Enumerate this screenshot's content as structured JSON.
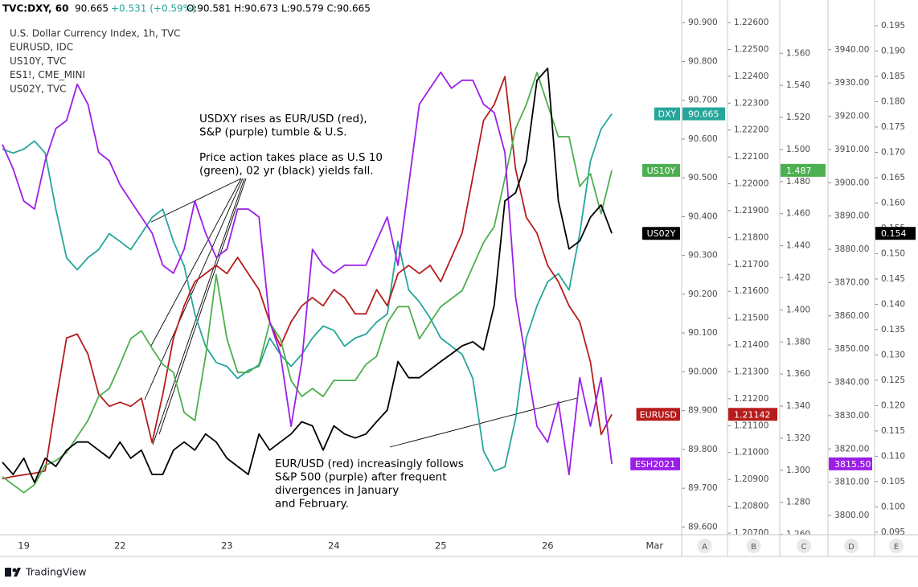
{
  "chart_data": {
    "type": "line",
    "header": {
      "symbol": "TVC:DXY, 60",
      "price": "90.665",
      "change": "+0.531 (+0.59%)",
      "ohlc": "O:90.581 H:90.673 L:90.579 C:90.665"
    },
    "brand": "TradingView",
    "annotations": [
      {
        "lines": [
          "USDXY rises as EUR/USD (red),",
          "S&P (purple) tumble & U.S."
        ]
      },
      {
        "lines": [
          "Price action takes place as U.S 10",
          "(green), 02 yr (black) yields fall."
        ]
      },
      {
        "lines": [
          "EUR/USD (red) increasingly follows",
          "S&P 500 (purple) after frequent",
          "divergences in January",
          "and February."
        ]
      }
    ],
    "categories": [
      null,
      null,
      "19",
      null,
      null,
      null,
      null,
      null,
      null,
      null,
      null,
      "22",
      null,
      null,
      null,
      null,
      null,
      null,
      null,
      null,
      null,
      "23",
      null,
      null,
      null,
      null,
      null,
      null,
      null,
      null,
      null,
      "24",
      null,
      null,
      null,
      null,
      null,
      null,
      null,
      null,
      null,
      "25",
      null,
      null,
      null,
      null,
      null,
      null,
      null,
      null,
      null,
      "26",
      null,
      null,
      null,
      null,
      null,
      null,
      null,
      null,
      null,
      "Mar"
    ],
    "series": [
      {
        "name": "DXY",
        "legend": "U.S. Dollar Currency Index, 1h, TVC",
        "axis_label": "A",
        "color": "#26a69a",
        "ylim": [
          89.58,
          90.917
        ],
        "yticks": [
          {
            "value": 90.9,
            "label": "90.900"
          },
          {
            "value": 90.8,
            "label": "90.800"
          },
          {
            "value": 90.7,
            "label": "90.700"
          },
          {
            "value": 90.6,
            "label": "90.600"
          },
          {
            "value": 90.5,
            "label": "90.500"
          },
          {
            "value": 90.4,
            "label": "90.400"
          },
          {
            "value": 90.3,
            "label": "90.300"
          },
          {
            "value": 90.2,
            "label": "90.200"
          },
          {
            "value": 90.1,
            "label": "90.100"
          },
          {
            "value": 90.0,
            "label": "90.000"
          },
          {
            "value": 89.9,
            "label": "89.900"
          },
          {
            "value": 89.8,
            "label": "89.800"
          },
          {
            "value": 89.7,
            "label": "89.700"
          },
          {
            "value": 89.6,
            "label": "89.600"
          }
        ],
        "values": [
          90.574,
          90.564,
          90.574,
          90.595,
          90.564,
          90.419,
          90.294,
          90.263,
          90.294,
          90.315,
          90.356,
          90.336,
          90.315,
          90.356,
          90.398,
          90.419,
          90.336,
          90.273,
          90.149,
          90.066,
          90.024,
          90.014,
          89.983,
          90.004,
          90.014,
          90.087,
          90.045,
          90.014,
          90.045,
          90.087,
          90.118,
          90.107,
          90.066,
          90.087,
          90.097,
          90.128,
          90.149,
          90.336,
          90.211,
          90.18,
          90.139,
          90.087,
          90.066,
          90.045,
          89.983,
          89.796,
          89.744,
          89.755,
          89.879,
          90.087,
          90.17,
          90.232,
          90.253,
          90.211,
          90.356,
          90.543,
          90.626,
          90.665,
          null,
          null,
          null,
          null
        ]
      },
      {
        "name": "EURUSD",
        "legend": "EURUSD, IDC",
        "axis_label": "B",
        "color": "#b71c1c",
        "ylim": [
          1.20694,
          1.22624
        ],
        "yticks": [
          {
            "value": 1.226,
            "label": "1.22600"
          },
          {
            "value": 1.225,
            "label": "1.22500"
          },
          {
            "value": 1.224,
            "label": "1.22400"
          },
          {
            "value": 1.223,
            "label": "1.22300"
          },
          {
            "value": 1.222,
            "label": "1.22200"
          },
          {
            "value": 1.221,
            "label": "1.22100"
          },
          {
            "value": 1.22,
            "label": "1.22000"
          },
          {
            "value": 1.219,
            "label": "1.21900"
          },
          {
            "value": 1.218,
            "label": "1.21800"
          },
          {
            "value": 1.217,
            "label": "1.21700"
          },
          {
            "value": 1.216,
            "label": "1.21600"
          },
          {
            "value": 1.215,
            "label": "1.21500"
          },
          {
            "value": 1.214,
            "label": "1.21400"
          },
          {
            "value": 1.213,
            "label": "1.21300"
          },
          {
            "value": 1.212,
            "label": "1.21200"
          },
          {
            "value": 1.211,
            "label": "1.21100"
          },
          {
            "value": 1.21,
            "label": "1.21000"
          },
          {
            "value": 1.209,
            "label": "1.20900"
          },
          {
            "value": 1.208,
            "label": "1.20800"
          },
          {
            "value": 1.207,
            "label": "1.20700"
          }
        ],
        "values": [
          1.20902,
          1.20911,
          1.20917,
          1.20923,
          1.20932,
          1.21187,
          1.21426,
          1.21441,
          1.21366,
          1.21217,
          1.21172,
          1.21187,
          1.21172,
          1.21202,
          1.21037,
          1.21217,
          1.21426,
          1.21546,
          1.21636,
          1.21666,
          1.21696,
          1.21666,
          1.21726,
          1.21666,
          1.21606,
          1.21486,
          1.21396,
          1.21486,
          1.21546,
          1.21576,
          1.21546,
          1.21606,
          1.21576,
          1.21516,
          1.21516,
          1.21606,
          1.21546,
          1.21666,
          1.21696,
          1.21666,
          1.21696,
          1.21636,
          1.21726,
          1.21816,
          1.22025,
          1.22235,
          1.22295,
          1.22399,
          1.22055,
          1.21875,
          1.21816,
          1.21696,
          1.21636,
          1.21546,
          1.21486,
          1.21337,
          1.21067,
          1.21142,
          null,
          null,
          null,
          null
        ]
      },
      {
        "name": "US10Y",
        "legend": "US10Y, TVC",
        "axis_label": "C",
        "color": "#4caf50",
        "ylim": [
          1.2598,
          1.5832
        ],
        "yticks": [
          {
            "value": 1.56,
            "label": "1.560"
          },
          {
            "value": 1.54,
            "label": "1.540"
          },
          {
            "value": 1.52,
            "label": "1.520"
          },
          {
            "value": 1.5,
            "label": "1.500"
          },
          {
            "value": 1.48,
            "label": "1.480"
          },
          {
            "value": 1.46,
            "label": "1.460"
          },
          {
            "value": 1.44,
            "label": "1.440"
          },
          {
            "value": 1.42,
            "label": "1.420"
          },
          {
            "value": 1.4,
            "label": "1.400"
          },
          {
            "value": 1.38,
            "label": "1.380"
          },
          {
            "value": 1.36,
            "label": "1.360"
          },
          {
            "value": 1.34,
            "label": "1.340"
          },
          {
            "value": 1.32,
            "label": "1.320"
          },
          {
            "value": 1.3,
            "label": "1.300"
          },
          {
            "value": 1.28,
            "label": "1.280"
          },
          {
            "value": 1.26,
            "label": "1.260"
          }
        ],
        "values": [
          1.296,
          1.291,
          1.286,
          1.291,
          1.303,
          1.306,
          1.311,
          1.321,
          1.331,
          1.346,
          1.351,
          1.366,
          1.382,
          1.387,
          1.376,
          1.366,
          1.361,
          1.336,
          1.331,
          1.371,
          1.422,
          1.382,
          1.361,
          1.361,
          1.366,
          1.392,
          1.382,
          1.356,
          1.346,
          1.351,
          1.346,
          1.356,
          1.356,
          1.356,
          1.366,
          1.371,
          1.392,
          1.402,
          1.402,
          1.382,
          1.392,
          1.402,
          1.407,
          1.412,
          1.427,
          1.442,
          1.452,
          1.482,
          1.513,
          1.528,
          1.548,
          1.528,
          1.508,
          1.508,
          1.477,
          1.485,
          1.46,
          1.487,
          null,
          null,
          null,
          null
        ]
      },
      {
        "name": "ESH2021",
        "legend": "ES1!, CME_MINI",
        "axis_label": "D",
        "color": "#9c1fe8",
        "last_label": "3815.50",
        "ylim": [
          3794.2,
          3950.1
        ],
        "yticks": [
          {
            "value": 3940,
            "label": "3940.00"
          },
          {
            "value": 3930,
            "label": "3930.00"
          },
          {
            "value": 3920,
            "label": "3920.00"
          },
          {
            "value": 3910,
            "label": "3910.00"
          },
          {
            "value": 3900,
            "label": "3900.00"
          },
          {
            "value": 3890,
            "label": "3890.00"
          },
          {
            "value": 3880,
            "label": "3880.00"
          },
          {
            "value": 3870,
            "label": "3870.00"
          },
          {
            "value": 3860,
            "label": "3860.00"
          },
          {
            "value": 3850,
            "label": "3850.00"
          },
          {
            "value": 3840,
            "label": "3840.00"
          },
          {
            "value": 3830,
            "label": "3830.00"
          },
          {
            "value": 3820,
            "label": "3820.00"
          },
          {
            "value": 3810,
            "label": "3810.00"
          },
          {
            "value": 3800,
            "label": "3800.00"
          }
        ],
        "values": [
          3911.5,
          3904.2,
          3894.5,
          3892.1,
          3906.6,
          3916.3,
          3918.7,
          3929.6,
          3923.6,
          3909.1,
          3906.6,
          3899.4,
          3894.5,
          3889.7,
          3884.9,
          3875.2,
          3872.8,
          3880.0,
          3894.5,
          3884.9,
          3877.6,
          3880.0,
          3892.1,
          3892.1,
          3889.7,
          3858.3,
          3848.6,
          3826.8,
          3846.2,
          3880.0,
          3875.2,
          3872.8,
          3875.2,
          3875.2,
          3875.2,
          3882.5,
          3889.7,
          3875.2,
          3899.4,
          3923.6,
          3928.4,
          3933.2,
          3928.4,
          3930.8,
          3930.8,
          3923.6,
          3921.1,
          3909.1,
          3865.5,
          3846.2,
          3826.8,
          3822.0,
          3834.1,
          3812.3,
          3841.4,
          3826.8,
          3841.4,
          3815.5,
          null,
          null,
          null,
          null
        ]
      },
      {
        "name": "US02Y",
        "legend": "US02Y, TVC",
        "axis_label": "E",
        "color": "#000000",
        "ylim": [
          0.0945,
          0.1969
        ],
        "yticks": [
          0.195,
          {
            "value": 0.19,
            "label": "0.190"
          },
          0.185,
          {
            "value": 0.18,
            "label": "0.180"
          },
          0.175,
          {
            "value": 0.17,
            "label": "0.170"
          },
          0.165,
          {
            "value": 0.16,
            "label": "0.160"
          },
          0.155,
          {
            "value": 0.15,
            "label": "0.150"
          },
          0.145,
          {
            "value": 0.14,
            "label": "0.140"
          },
          0.135,
          {
            "value": 0.13,
            "label": "0.130"
          },
          0.125,
          {
            "value": 0.12,
            "label": "0.120"
          },
          0.115,
          {
            "value": 0.11,
            "label": "0.110"
          },
          0.105,
          {
            "value": 0.1,
            "label": "0.100"
          },
          0.095
        ],
        "values": [
          0.1088,
          0.1064,
          0.1096,
          0.1048,
          0.1096,
          0.108,
          0.1112,
          0.1128,
          0.1128,
          0.1112,
          0.1096,
          0.1128,
          0.1096,
          0.1112,
          0.1064,
          0.1064,
          0.1112,
          0.1128,
          0.1112,
          0.1144,
          0.1128,
          0.1096,
          0.108,
          0.1064,
          0.1144,
          0.1112,
          0.1128,
          0.1144,
          0.1168,
          0.116,
          0.1112,
          0.116,
          0.1144,
          0.1136,
          0.1144,
          0.1168,
          0.1191,
          0.1287,
          0.1255,
          0.1255,
          0.1271,
          0.1287,
          0.1302,
          0.1318,
          0.1326,
          0.131,
          0.1398,
          0.1604,
          0.162,
          0.1683,
          0.1842,
          0.1866,
          0.1604,
          0.1509,
          0.1525,
          0.1572,
          0.1596,
          0.154,
          null,
          null,
          null,
          null
        ]
      }
    ]
  }
}
